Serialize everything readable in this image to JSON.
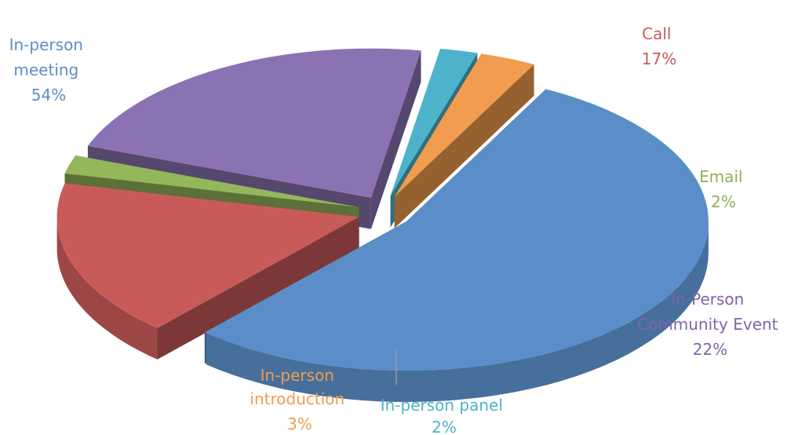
{
  "chart_data": {
    "type": "pie",
    "title": "",
    "categories": [
      "In-person meeting",
      "Call",
      "Email",
      "In-Person Community Event",
      "In-person panel",
      "In-person introduction"
    ],
    "values": [
      54,
      17,
      2,
      22,
      2,
      3
    ],
    "value_labels": [
      "54%",
      "17%",
      "2%",
      "22%",
      "2%",
      "3%"
    ],
    "colors": [
      "#5b8ec8",
      "#c85b5a",
      "#93b75a",
      "#8b72b3",
      "#4cb3cb",
      "#f19c4e"
    ],
    "legend": "none",
    "style": "3d-exploded"
  }
}
